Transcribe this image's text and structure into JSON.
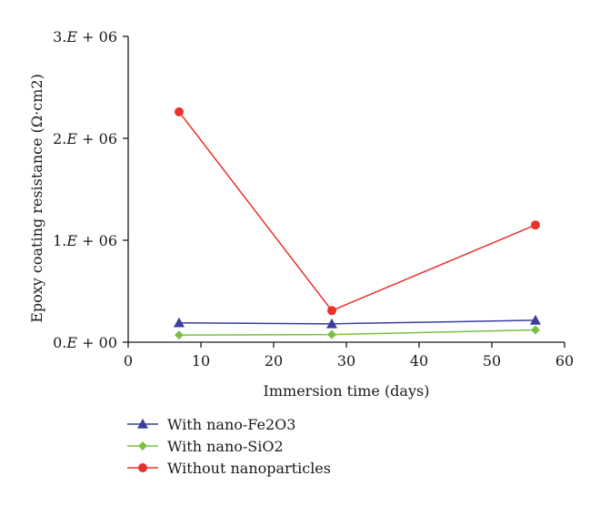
{
  "chart_data": {
    "type": "line",
    "xlabel": "Immersion time (days)",
    "ylabel": "Epoxy coating resistance (Ω·cm2)",
    "xlim": [
      0,
      60
    ],
    "ylim": [
      0,
      3000000
    ],
    "x_ticks": [
      0,
      10,
      20,
      30,
      40,
      50,
      60
    ],
    "x_tick_labels": [
      "0",
      "10",
      "20",
      "30",
      "40",
      "50",
      "60"
    ],
    "y_ticks": [
      0,
      1000000,
      2000000,
      3000000
    ],
    "y_tick_labels": [
      {
        "mant": "0.",
        "e": "E",
        "rest": " + 00"
      },
      {
        "mant": "1.",
        "e": "E",
        "rest": " + 06"
      },
      {
        "mant": "2.",
        "e": "E",
        "rest": " + 06"
      },
      {
        "mant": "3.",
        "e": "E",
        "rest": " + 06"
      }
    ],
    "grid": false,
    "legend_position": "bottom-left",
    "x": [
      7,
      28,
      56
    ],
    "series": [
      {
        "name": "With nano-Fe2O3",
        "marker": "triangle",
        "color": "#3d3d9e",
        "values": [
          190000,
          180000,
          215000
        ]
      },
      {
        "name": "With nano-SiO2",
        "marker": "diamond",
        "color": "#7ac143",
        "values": [
          70000,
          75000,
          120000
        ]
      },
      {
        "name": "Without nanoparticles",
        "marker": "circle",
        "color": "#e8322c",
        "values": [
          2260000,
          310000,
          1150000
        ]
      }
    ]
  }
}
